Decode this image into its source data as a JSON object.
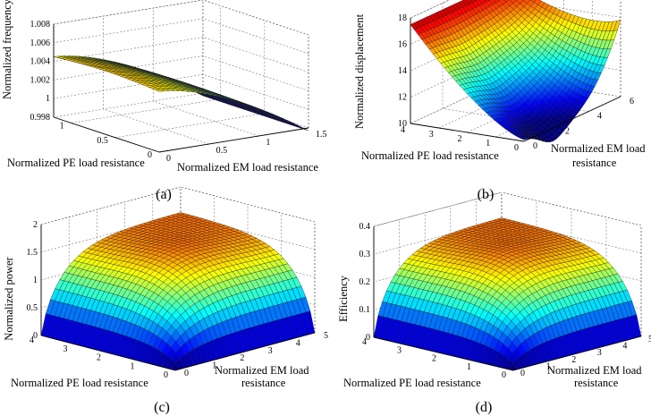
{
  "chart_data": [
    {
      "id": "a",
      "type": "surface",
      "panel_label": "(a)",
      "xlabel": "Normalized EM load resistance",
      "ylabel": "Normalized PE load resistance",
      "zlabel": "Normalized frequency",
      "xlim": [
        0,
        1.5
      ],
      "ylim": [
        0,
        1.2
      ],
      "zlim": [
        0.998,
        1.008
      ],
      "x_ticks": [
        "0",
        "0.5",
        "1",
        "1.5"
      ],
      "y_ticks": [
        "0",
        "0.5",
        "1"
      ],
      "z_ticks": [
        "0.998",
        "1",
        "1.002",
        "1.004",
        "1.006",
        "1.008"
      ],
      "surface_description": "maximum ~1.0045 at zero EM resistance, falling to ~0.998 at EM resistance 1.5",
      "grid": true
    },
    {
      "id": "b",
      "type": "surface",
      "panel_label": "(b)",
      "xlabel": "Normalized EM load resistance",
      "ylabel": "Normalized PE load resistance",
      "zlabel": "Normalized displacement",
      "xlim": [
        0,
        6
      ],
      "ylim": [
        0,
        4
      ],
      "zlim": [
        10,
        18
      ],
      "x_ticks": [
        "0",
        "2",
        "4",
        "6"
      ],
      "y_ticks": [
        "0",
        "1",
        "2",
        "3",
        "4"
      ],
      "z_ticks": [
        "10",
        "12",
        "14",
        "16",
        "18"
      ],
      "surface_description": "ridge ~17-18 along high PE resistance, valley ~10 near low PE and low EM resistance",
      "grid": true
    },
    {
      "id": "c",
      "type": "surface",
      "panel_label": "(c)",
      "xlabel": "Normalized EM load resistance",
      "ylabel": "Normalized PE load resistance",
      "zlabel": "Normalized power",
      "xlim": [
        0,
        5
      ],
      "ylim": [
        0,
        4
      ],
      "zlim": [
        0,
        2
      ],
      "x_ticks": [
        "0",
        "1",
        "2",
        "3",
        "4",
        "5"
      ],
      "y_ticks": [
        "0",
        "1",
        "2",
        "3",
        "4"
      ],
      "z_ticks": [
        "0",
        "0.5",
        "1",
        "1.5",
        "2"
      ],
      "surface_description": "zero at origin, rising to a plateau of ~1.5",
      "grid": true
    },
    {
      "id": "d",
      "type": "surface",
      "panel_label": "(d)",
      "xlabel": "Normalized EM load resistance",
      "ylabel": "Normalized PE load resistance",
      "zlabel": "Efficiency",
      "xlim": [
        0,
        5
      ],
      "ylim": [
        0,
        4
      ],
      "zlim": [
        0,
        0.4
      ],
      "x_ticks": [
        "0",
        "1",
        "2",
        "3",
        "4",
        "5"
      ],
      "y_ticks": [
        "0",
        "1",
        "2",
        "3",
        "4"
      ],
      "z_ticks": [
        "0",
        "0.1",
        "0.2",
        "0.3",
        "0.4"
      ],
      "surface_description": "zero at origin, rising to a plateau of ~0.3",
      "grid": true
    }
  ]
}
